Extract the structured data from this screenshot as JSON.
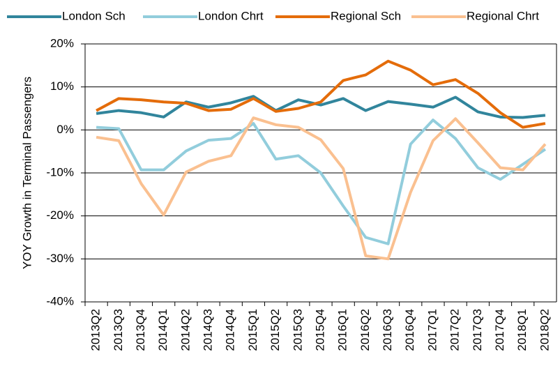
{
  "chart_data": {
    "type": "line",
    "y_label": "YOY Growth in Terminal Passengers",
    "categories": [
      "2013Q2",
      "2013Q3",
      "2013Q4",
      "2014Q1",
      "2014Q2",
      "2014Q3",
      "2014Q4",
      "2015Q1",
      "2015Q2",
      "2015Q3",
      "2015Q4",
      "2016Q1",
      "2016Q2",
      "2016Q3",
      "2016Q4",
      "2017Q1",
      "2017Q2",
      "2017Q3",
      "2017Q4",
      "2018Q1",
      "2018Q2"
    ],
    "series": [
      {
        "name": "London Sch",
        "color": "#31859c",
        "values": [
          3.8,
          4.5,
          4.0,
          3.0,
          6.5,
          5.3,
          6.3,
          7.8,
          4.5,
          7.0,
          5.8,
          7.3,
          4.5,
          6.6,
          6.0,
          5.3,
          7.6,
          4.2,
          3.0,
          2.9,
          3.4
        ]
      },
      {
        "name": "London Chrt",
        "color": "#92cddc",
        "values": [
          0.6,
          0.3,
          -9.3,
          -9.3,
          -4.9,
          -2.4,
          -2.0,
          1.5,
          -6.8,
          -6.0,
          -10.0,
          -17.7,
          -25.0,
          -26.5,
          -3.3,
          2.3,
          -2.0,
          -8.8,
          -11.5,
          -8.0,
          -4.5
        ]
      },
      {
        "name": "Regional Sch",
        "color": "#e46c0a",
        "values": [
          4.5,
          7.3,
          7.0,
          6.5,
          6.2,
          4.5,
          4.8,
          7.3,
          4.3,
          5.0,
          6.5,
          11.5,
          12.8,
          16.0,
          13.9,
          10.5,
          11.7,
          8.5,
          4.0,
          0.6,
          1.5
        ]
      },
      {
        "name": "Regional Chrt",
        "color": "#fac090",
        "values": [
          -1.7,
          -2.5,
          -12.5,
          -19.8,
          -9.8,
          -7.3,
          -6.0,
          2.8,
          1.2,
          0.6,
          -2.3,
          -9.0,
          -29.3,
          -30.0,
          -14.5,
          -2.5,
          2.6,
          -3.0,
          -8.8,
          -9.3,
          -3.3
        ]
      }
    ],
    "ylim": [
      -40,
      20
    ],
    "yticks": [
      {
        "value": -40,
        "label": "-40%"
      },
      {
        "value": -30,
        "label": "-30%"
      },
      {
        "value": -20,
        "label": "-20%"
      },
      {
        "value": -10,
        "label": "-10%"
      },
      {
        "value": 0,
        "label": "0%"
      },
      {
        "value": 10,
        "label": "10%"
      },
      {
        "value": 20,
        "label": "20%"
      }
    ],
    "grid": true,
    "legend": "top"
  }
}
